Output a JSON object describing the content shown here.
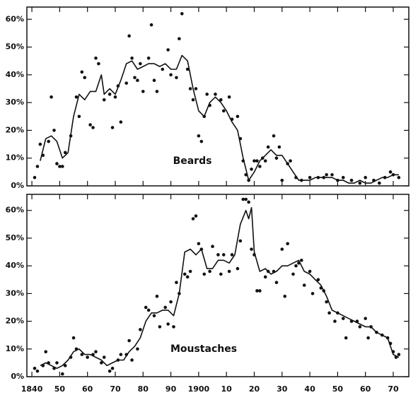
{
  "chart_data": [
    {
      "type": "line",
      "label": "Beards",
      "color": "#111",
      "x": [
        1843,
        1845,
        1847,
        1849,
        1851,
        1853,
        1855,
        1857,
        1859,
        1861,
        1863,
        1865,
        1866,
        1868,
        1870,
        1872,
        1874,
        1876,
        1878,
        1880,
        1882,
        1884,
        1886,
        1888,
        1890,
        1892,
        1894,
        1896,
        1898,
        1900,
        1902,
        1904,
        1906,
        1908,
        1910,
        1912,
        1914,
        1916,
        1918,
        1920,
        1922,
        1924,
        1926,
        1928,
        1930,
        1932,
        1934,
        1936,
        1938,
        1940,
        1942,
        1944,
        1946,
        1948,
        1950,
        1952,
        1954,
        1956,
        1958,
        1960,
        1962,
        1964,
        1966,
        1968,
        1970,
        1972
      ],
      "values": [
        9,
        17,
        18,
        16,
        10,
        12,
        25,
        33,
        31,
        34,
        34,
        40,
        33,
        35,
        33,
        38,
        44,
        45,
        42,
        43,
        44,
        44,
        43,
        44,
        42,
        42,
        47,
        45,
        35,
        27,
        25,
        30,
        32,
        30,
        27,
        23,
        20,
        10,
        2,
        5,
        9,
        11,
        13,
        11,
        11,
        8,
        5,
        2,
        2,
        2,
        3,
        3,
        3,
        3,
        2,
        2,
        1,
        1,
        2,
        1,
        1,
        2,
        3,
        3,
        4,
        4
      ],
      "points": {
        "x": [
          1841,
          1842,
          1843,
          1844,
          1846,
          1847,
          1848,
          1849,
          1850,
          1851,
          1852,
          1854,
          1856,
          1857,
          1858,
          1859,
          1861,
          1862,
          1863,
          1864,
          1866,
          1868,
          1869,
          1870,
          1871,
          1872,
          1874,
          1875,
          1876,
          1877,
          1878,
          1879,
          1880,
          1882,
          1883,
          1884,
          1885,
          1887,
          1889,
          1890,
          1892,
          1893,
          1894,
          1896,
          1897,
          1898,
          1899,
          1900,
          1901,
          1902,
          1903,
          1904,
          1906,
          1908,
          1909,
          1911,
          1912,
          1914,
          1915,
          1916,
          1917,
          1918,
          1919,
          1920,
          1921,
          1922,
          1923,
          1924,
          1925,
          1927,
          1928,
          1929,
          1930,
          1932,
          1933,
          1935,
          1937,
          1940,
          1943,
          1945,
          1946,
          1948,
          1950,
          1952,
          1955,
          1958,
          1960,
          1963,
          1965,
          1967,
          1969,
          1970,
          1972
        ],
        "values": [
          3,
          7,
          15,
          11,
          16,
          32,
          20,
          8,
          7,
          7,
          12,
          18,
          32,
          25,
          41,
          39,
          22,
          21,
          46,
          44,
          31,
          33,
          21,
          32,
          36,
          23,
          37,
          54,
          46,
          39,
          38,
          44,
          34,
          46,
          58,
          38,
          34,
          42,
          49,
          40,
          39,
          53,
          62,
          42,
          35,
          31,
          35,
          18,
          16,
          25,
          33,
          29,
          33,
          31,
          27,
          32,
          24,
          25,
          17,
          9,
          4,
          2,
          6,
          9,
          9,
          7,
          10,
          9,
          14,
          18,
          10,
          14,
          2,
          8,
          9,
          3,
          2,
          3,
          3,
          3,
          4,
          4,
          2,
          3,
          2,
          1,
          3,
          2,
          1,
          3,
          5,
          4,
          3
        ]
      },
      "xlim": [
        1838.2,
        1975.6
      ],
      "ylim": [
        0,
        64.4
      ],
      "yticks": [
        {
          "value": 0,
          "label": "0%"
        },
        {
          "value": 10,
          "label": "10%"
        },
        {
          "value": 20,
          "label": "20%"
        },
        {
          "value": 30,
          "label": "30%"
        },
        {
          "value": 40,
          "label": "40%"
        },
        {
          "value": 50,
          "label": "50%"
        },
        {
          "value": 60,
          "label": "60%"
        }
      ]
    },
    {
      "type": "line",
      "label": "Moustaches",
      "color": "#111",
      "x": [
        1843,
        1845,
        1847,
        1849,
        1851,
        1853,
        1855,
        1857,
        1859,
        1861,
        1863,
        1865,
        1867,
        1869,
        1871,
        1873,
        1875,
        1877,
        1879,
        1881,
        1883,
        1885,
        1887,
        1889,
        1891,
        1893,
        1895,
        1897,
        1899,
        1901,
        1903,
        1905,
        1907,
        1909,
        1911,
        1913,
        1915,
        1917,
        1918,
        1919,
        1920,
        1922,
        1924,
        1926,
        1928,
        1930,
        1932,
        1934,
        1936,
        1938,
        1940,
        1942,
        1944,
        1946,
        1948,
        1950,
        1952,
        1954,
        1956,
        1958,
        1960,
        1962,
        1964,
        1966,
        1968,
        1970,
        1972
      ],
      "values": [
        4,
        5,
        4,
        3,
        4,
        6,
        9,
        10,
        8,
        8,
        7,
        6,
        4,
        5,
        6,
        6,
        9,
        11,
        14,
        20,
        23,
        23,
        24,
        24,
        22,
        30,
        45,
        46,
        44,
        46,
        39,
        39,
        42,
        42,
        41,
        44,
        55,
        60,
        57,
        61,
        45,
        38,
        39,
        37,
        38,
        40,
        40,
        41,
        42,
        38,
        37,
        35,
        33,
        29,
        24,
        23,
        22,
        21,
        20,
        19,
        18,
        18,
        16,
        15,
        14,
        8,
        7
      ],
      "points": {
        "x": [
          1841,
          1842,
          1844,
          1845,
          1846,
          1848,
          1849,
          1851,
          1852,
          1854,
          1855,
          1856,
          1858,
          1860,
          1862,
          1863,
          1865,
          1866,
          1868,
          1869,
          1871,
          1872,
          1874,
          1875,
          1876,
          1878,
          1879,
          1881,
          1882,
          1884,
          1885,
          1886,
          1888,
          1889,
          1890,
          1891,
          1892,
          1893,
          1895,
          1896,
          1897,
          1898,
          1899,
          1900,
          1901,
          1902,
          1904,
          1905,
          1907,
          1908,
          1909,
          1911,
          1912,
          1914,
          1915,
          1916,
          1917,
          1918,
          1919,
          1920,
          1921,
          1922,
          1924,
          1925,
          1927,
          1928,
          1930,
          1931,
          1932,
          1934,
          1935,
          1936,
          1937,
          1938,
          1940,
          1941,
          1943,
          1944,
          1945,
          1946,
          1947,
          1949,
          1950,
          1952,
          1953,
          1955,
          1957,
          1958,
          1960,
          1961,
          1962,
          1964,
          1966,
          1968,
          1969,
          1970,
          1971,
          1972
        ],
        "values": [
          3,
          2,
          4,
          9,
          5,
          3,
          5,
          1,
          4,
          7,
          14,
          10,
          8,
          7,
          8,
          9,
          5,
          7,
          2,
          3,
          6,
          8,
          8,
          13,
          6,
          10,
          17,
          25,
          24,
          22,
          29,
          18,
          25,
          19,
          27,
          18,
          34,
          30,
          37,
          36,
          38,
          57,
          58,
          48,
          46,
          37,
          38,
          47,
          44,
          37,
          44,
          38,
          44,
          39,
          49,
          64,
          64,
          63,
          46,
          44,
          31,
          31,
          36,
          38,
          38,
          34,
          46,
          29,
          48,
          37,
          40,
          41,
          42,
          33,
          38,
          30,
          35,
          32,
          31,
          27,
          23,
          20,
          23,
          21,
          14,
          20,
          20,
          18,
          21,
          14,
          18,
          16,
          15,
          14,
          12,
          9,
          7,
          8
        ]
      },
      "xlim": [
        1838.2,
        1975.6
      ],
      "ylim": [
        0,
        65.8
      ],
      "xticks": [
        {
          "value": 1840,
          "label": "1840"
        },
        {
          "value": 1850,
          "label": "50"
        },
        {
          "value": 1860,
          "label": "60"
        },
        {
          "value": 1870,
          "label": "70"
        },
        {
          "value": 1880,
          "label": "80"
        },
        {
          "value": 1890,
          "label": "90"
        },
        {
          "value": 1900,
          "label": "1900"
        },
        {
          "value": 1910,
          "label": "10"
        },
        {
          "value": 1920,
          "label": "20"
        },
        {
          "value": 1930,
          "label": "30"
        },
        {
          "value": 1940,
          "label": "40"
        },
        {
          "value": 1950,
          "label": "50"
        },
        {
          "value": 1960,
          "label": "60"
        },
        {
          "value": 1970,
          "label": "70"
        }
      ],
      "yticks": [
        {
          "value": 0,
          "label": "0%"
        },
        {
          "value": 10,
          "label": "10%"
        },
        {
          "value": 20,
          "label": "20%"
        },
        {
          "value": 30,
          "label": "30%"
        },
        {
          "value": 40,
          "label": "40%"
        },
        {
          "value": 50,
          "label": "50%"
        },
        {
          "value": 60,
          "label": "60%"
        }
      ]
    }
  ]
}
